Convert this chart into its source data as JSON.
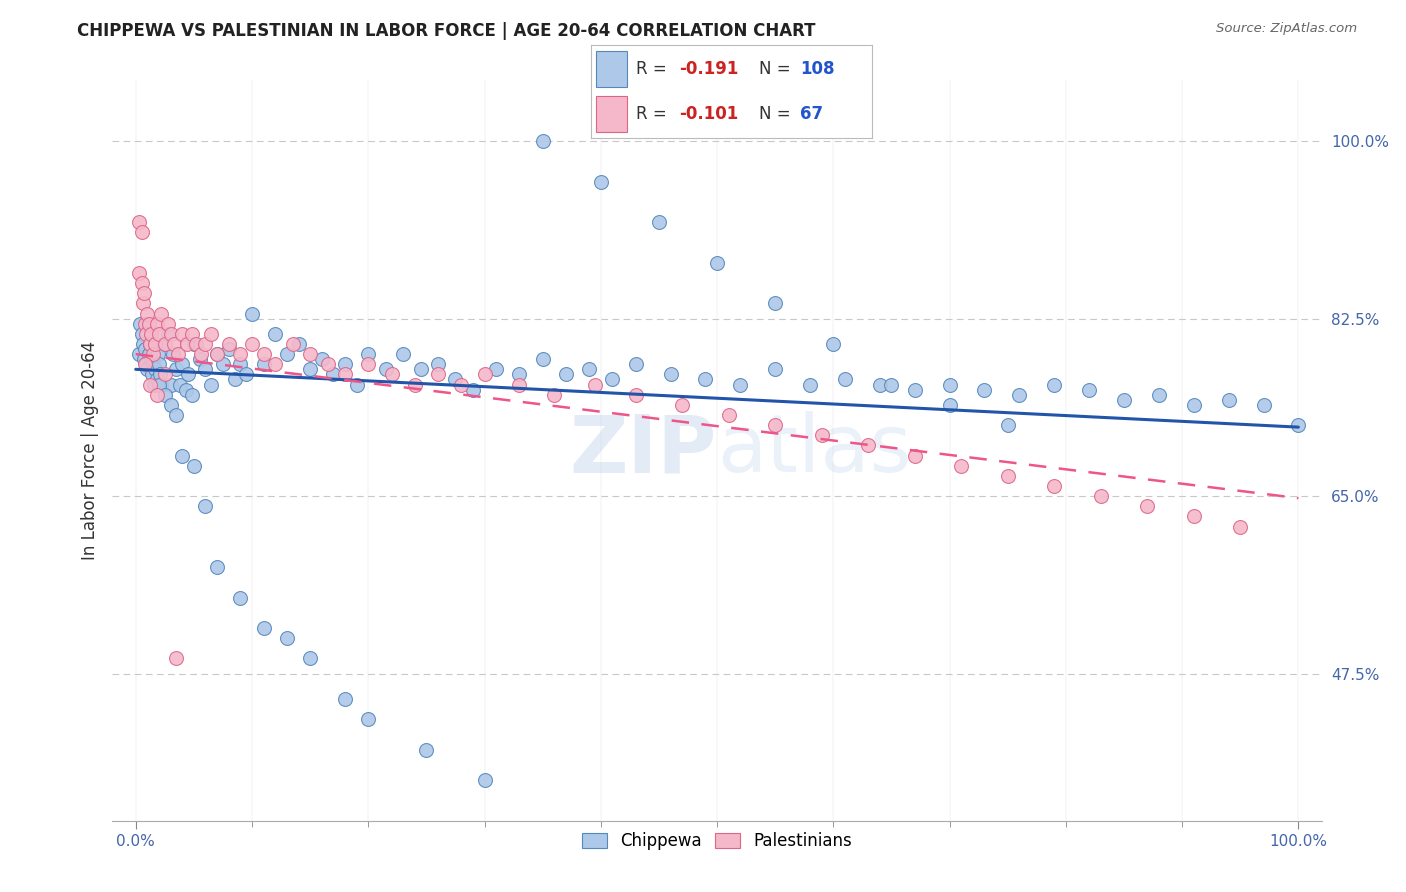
{
  "title": "CHIPPEWA VS PALESTINIAN IN LABOR FORCE | AGE 20-64 CORRELATION CHART",
  "source": "Source: ZipAtlas.com",
  "ylabel": "In Labor Force | Age 20-64",
  "xlim": [
    -0.02,
    1.02
  ],
  "ylim": [
    0.33,
    1.06
  ],
  "yticks": [
    0.475,
    0.65,
    0.825,
    1.0
  ],
  "ytick_labels": [
    "47.5%",
    "65.0%",
    "82.5%",
    "100.0%"
  ],
  "chippewa_color": "#adc8e8",
  "chippewa_edge_color": "#5588bb",
  "palestinian_color": "#f5b8cb",
  "palestinian_edge_color": "#dd6688",
  "trend_chippewa_color": "#2255aa",
  "trend_palestinian_color": "#ee5588",
  "trend_chip_x0": 0.0,
  "trend_chip_y0": 0.775,
  "trend_chip_x1": 1.0,
  "trend_chip_y1": 0.718,
  "trend_pal_x0": 0.0,
  "trend_pal_y0": 0.79,
  "trend_pal_x1": 1.0,
  "trend_pal_y1": 0.648,
  "R_chippewa": -0.191,
  "N_chippewa": 108,
  "R_palestinian": -0.101,
  "N_palestinian": 67,
  "watermark_text": "ZIPatlas",
  "chip_x": [
    0.003,
    0.004,
    0.005,
    0.006,
    0.007,
    0.008,
    0.009,
    0.01,
    0.011,
    0.012,
    0.013,
    0.014,
    0.015,
    0.016,
    0.017,
    0.018,
    0.019,
    0.02,
    0.021,
    0.022,
    0.025,
    0.028,
    0.03,
    0.032,
    0.035,
    0.038,
    0.04,
    0.043,
    0.045,
    0.048,
    0.05,
    0.055,
    0.06,
    0.065,
    0.07,
    0.075,
    0.08,
    0.085,
    0.09,
    0.095,
    0.1,
    0.11,
    0.12,
    0.13,
    0.14,
    0.15,
    0.16,
    0.17,
    0.18,
    0.19,
    0.2,
    0.215,
    0.23,
    0.245,
    0.26,
    0.275,
    0.29,
    0.31,
    0.33,
    0.35,
    0.37,
    0.39,
    0.41,
    0.43,
    0.46,
    0.49,
    0.52,
    0.55,
    0.58,
    0.61,
    0.64,
    0.67,
    0.7,
    0.73,
    0.76,
    0.79,
    0.82,
    0.85,
    0.88,
    0.91,
    0.94,
    0.97,
    1.0,
    0.02,
    0.025,
    0.03,
    0.035,
    0.04,
    0.05,
    0.06,
    0.07,
    0.09,
    0.11,
    0.13,
    0.15,
    0.18,
    0.2,
    0.25,
    0.3,
    0.35,
    0.4,
    0.45,
    0.5,
    0.55,
    0.6,
    0.65,
    0.7,
    0.75
  ],
  "chip_y": [
    0.79,
    0.82,
    0.81,
    0.8,
    0.785,
    0.795,
    0.78,
    0.775,
    0.79,
    0.8,
    0.785,
    0.77,
    0.78,
    0.76,
    0.775,
    0.765,
    0.79,
    0.78,
    0.77,
    0.76,
    0.8,
    0.81,
    0.76,
    0.79,
    0.775,
    0.76,
    0.78,
    0.755,
    0.77,
    0.75,
    0.8,
    0.785,
    0.775,
    0.76,
    0.79,
    0.78,
    0.795,
    0.765,
    0.78,
    0.77,
    0.83,
    0.78,
    0.81,
    0.79,
    0.8,
    0.775,
    0.785,
    0.77,
    0.78,
    0.76,
    0.79,
    0.775,
    0.79,
    0.775,
    0.78,
    0.765,
    0.755,
    0.775,
    0.77,
    0.785,
    0.77,
    0.775,
    0.765,
    0.78,
    0.77,
    0.765,
    0.76,
    0.775,
    0.76,
    0.765,
    0.76,
    0.755,
    0.76,
    0.755,
    0.75,
    0.76,
    0.755,
    0.745,
    0.75,
    0.74,
    0.745,
    0.74,
    0.72,
    0.76,
    0.75,
    0.74,
    0.73,
    0.69,
    0.68,
    0.64,
    0.58,
    0.55,
    0.52,
    0.51,
    0.49,
    0.45,
    0.43,
    0.4,
    0.37,
    1.0,
    0.96,
    0.92,
    0.88,
    0.84,
    0.8,
    0.76,
    0.74,
    0.72
  ],
  "pal_x": [
    0.003,
    0.005,
    0.006,
    0.007,
    0.008,
    0.009,
    0.01,
    0.011,
    0.012,
    0.013,
    0.015,
    0.017,
    0.018,
    0.02,
    0.022,
    0.025,
    0.028,
    0.03,
    0.033,
    0.036,
    0.04,
    0.044,
    0.048,
    0.052,
    0.056,
    0.06,
    0.065,
    0.07,
    0.08,
    0.09,
    0.1,
    0.11,
    0.12,
    0.135,
    0.15,
    0.165,
    0.18,
    0.2,
    0.22,
    0.24,
    0.26,
    0.28,
    0.3,
    0.33,
    0.36,
    0.395,
    0.43,
    0.47,
    0.51,
    0.55,
    0.59,
    0.63,
    0.67,
    0.71,
    0.75,
    0.79,
    0.83,
    0.87,
    0.91,
    0.95,
    0.003,
    0.005,
    0.008,
    0.012,
    0.018,
    0.025,
    0.035
  ],
  "pal_y": [
    0.87,
    0.86,
    0.84,
    0.85,
    0.82,
    0.81,
    0.83,
    0.82,
    0.8,
    0.81,
    0.79,
    0.8,
    0.82,
    0.81,
    0.83,
    0.8,
    0.82,
    0.81,
    0.8,
    0.79,
    0.81,
    0.8,
    0.81,
    0.8,
    0.79,
    0.8,
    0.81,
    0.79,
    0.8,
    0.79,
    0.8,
    0.79,
    0.78,
    0.8,
    0.79,
    0.78,
    0.77,
    0.78,
    0.77,
    0.76,
    0.77,
    0.76,
    0.77,
    0.76,
    0.75,
    0.76,
    0.75,
    0.74,
    0.73,
    0.72,
    0.71,
    0.7,
    0.69,
    0.68,
    0.67,
    0.66,
    0.65,
    0.64,
    0.63,
    0.62,
    0.92,
    0.91,
    0.78,
    0.76,
    0.75,
    0.77,
    0.49
  ]
}
